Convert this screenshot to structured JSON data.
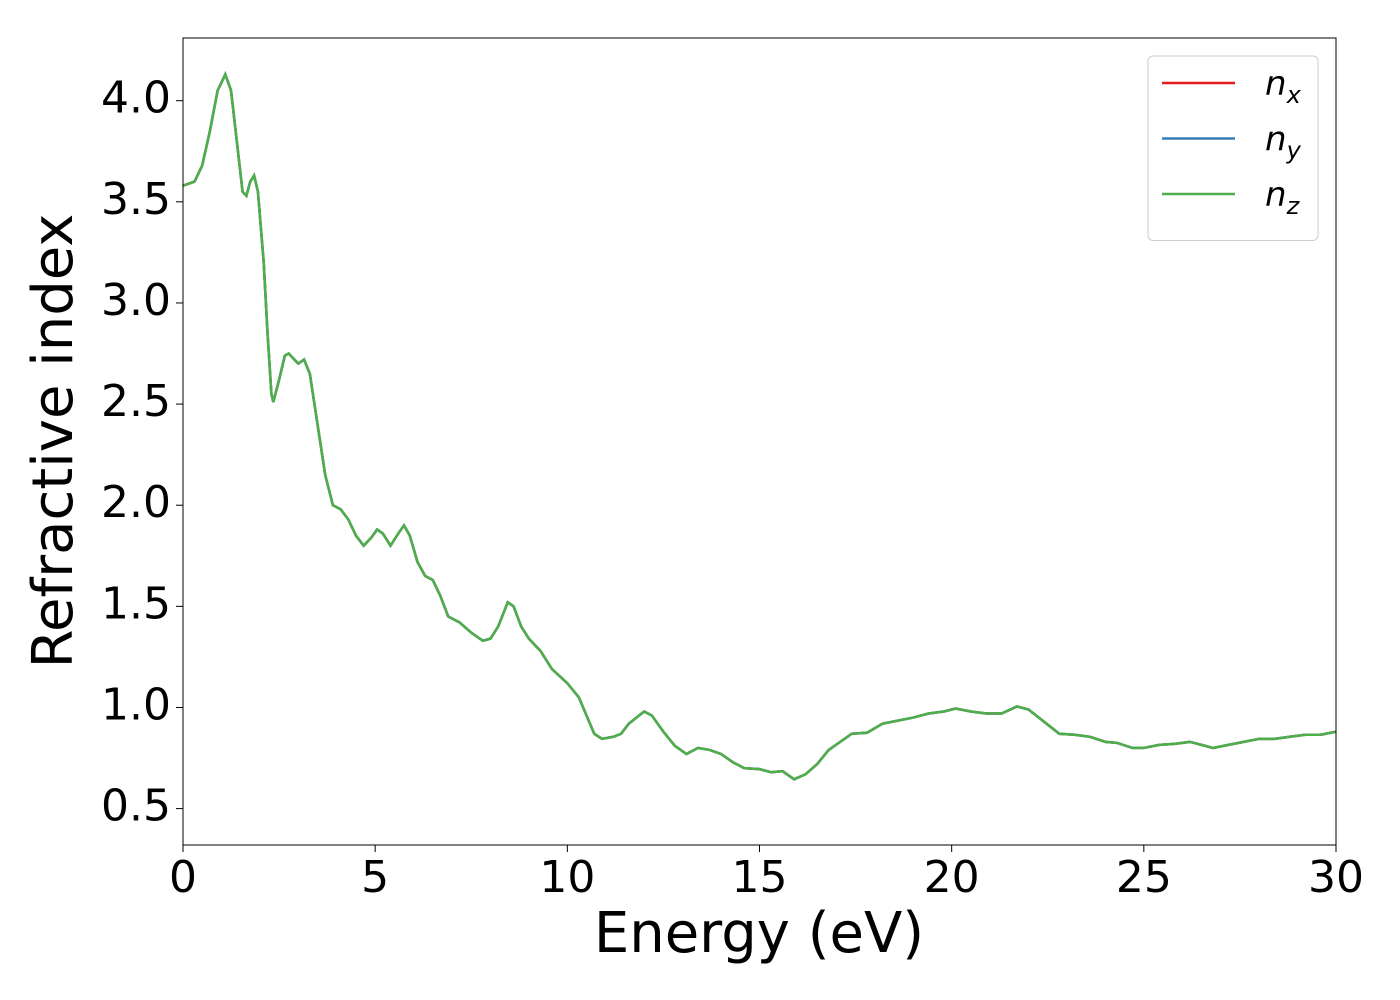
{
  "chart_data": {
    "type": "line",
    "xlabel": "Energy (eV)",
    "ylabel": "Refractive index",
    "x": [
      0,
      0.3,
      0.5,
      0.7,
      0.9,
      1.1,
      1.25,
      1.4,
      1.55,
      1.65,
      1.75,
      1.85,
      1.95,
      2.1,
      2.2,
      2.3,
      2.35,
      2.5,
      2.65,
      2.75,
      2.9,
      3.0,
      3.15,
      3.3,
      3.5,
      3.7,
      3.9,
      4.1,
      4.3,
      4.5,
      4.7,
      4.9,
      5.05,
      5.2,
      5.4,
      5.6,
      5.75,
      5.9,
      6.1,
      6.3,
      6.5,
      6.7,
      6.9,
      7.2,
      7.5,
      7.8,
      8.0,
      8.2,
      8.45,
      8.6,
      8.8,
      9.0,
      9.3,
      9.6,
      10.0,
      10.3,
      10.5,
      10.7,
      10.9,
      11.2,
      11.4,
      11.6,
      11.8,
      12.0,
      12.2,
      12.5,
      12.8,
      13.1,
      13.4,
      13.7,
      14.0,
      14.3,
      14.6,
      15.0,
      15.3,
      15.6,
      15.9,
      16.2,
      16.5,
      16.8,
      17.1,
      17.4,
      17.8,
      18.2,
      18.6,
      19.0,
      19.4,
      19.8,
      20.1,
      20.5,
      20.9,
      21.3,
      21.7,
      22.0,
      22.4,
      22.8,
      23.2,
      23.6,
      24.0,
      24.3,
      24.7,
      25.0,
      25.4,
      25.8,
      26.2,
      26.5,
      26.8,
      27.2,
      27.6,
      28.0,
      28.4,
      28.8,
      29.2,
      29.6,
      30.0
    ],
    "series": [
      {
        "name": "n_x",
        "color": "#e41a1c",
        "values": [
          3.58,
          3.6,
          3.68,
          3.85,
          4.05,
          4.13,
          4.05,
          3.8,
          3.55,
          3.53,
          3.6,
          3.63,
          3.55,
          3.2,
          2.85,
          2.55,
          2.51,
          2.62,
          2.74,
          2.75,
          2.72,
          2.7,
          2.72,
          2.65,
          2.4,
          2.15,
          2.0,
          1.98,
          1.93,
          1.85,
          1.8,
          1.84,
          1.88,
          1.86,
          1.8,
          1.86,
          1.9,
          1.85,
          1.72,
          1.65,
          1.63,
          1.55,
          1.45,
          1.42,
          1.37,
          1.33,
          1.34,
          1.4,
          1.52,
          1.5,
          1.4,
          1.34,
          1.28,
          1.19,
          1.12,
          1.05,
          0.96,
          0.87,
          0.845,
          0.855,
          0.87,
          0.92,
          0.95,
          0.98,
          0.96,
          0.88,
          0.81,
          0.77,
          0.8,
          0.79,
          0.77,
          0.73,
          0.7,
          0.695,
          0.68,
          0.685,
          0.645,
          0.67,
          0.72,
          0.79,
          0.83,
          0.87,
          0.875,
          0.92,
          0.935,
          0.95,
          0.97,
          0.98,
          0.995,
          0.98,
          0.97,
          0.97,
          1.005,
          0.99,
          0.93,
          0.87,
          0.865,
          0.855,
          0.83,
          0.825,
          0.8,
          0.8,
          0.815,
          0.82,
          0.83,
          0.815,
          0.8,
          0.815,
          0.83,
          0.845,
          0.845,
          0.855,
          0.865,
          0.865,
          0.88
        ]
      },
      {
        "name": "n_y",
        "color": "#377eb8",
        "values": [
          3.58,
          3.6,
          3.68,
          3.85,
          4.05,
          4.13,
          4.05,
          3.8,
          3.55,
          3.53,
          3.6,
          3.63,
          3.55,
          3.2,
          2.85,
          2.55,
          2.51,
          2.62,
          2.74,
          2.75,
          2.72,
          2.7,
          2.72,
          2.65,
          2.4,
          2.15,
          2.0,
          1.98,
          1.93,
          1.85,
          1.8,
          1.84,
          1.88,
          1.86,
          1.8,
          1.86,
          1.9,
          1.85,
          1.72,
          1.65,
          1.63,
          1.55,
          1.45,
          1.42,
          1.37,
          1.33,
          1.34,
          1.4,
          1.52,
          1.5,
          1.4,
          1.34,
          1.28,
          1.19,
          1.12,
          1.05,
          0.96,
          0.87,
          0.845,
          0.855,
          0.87,
          0.92,
          0.95,
          0.98,
          0.96,
          0.88,
          0.81,
          0.77,
          0.8,
          0.79,
          0.77,
          0.73,
          0.7,
          0.695,
          0.68,
          0.685,
          0.645,
          0.67,
          0.72,
          0.79,
          0.83,
          0.87,
          0.875,
          0.92,
          0.935,
          0.95,
          0.97,
          0.98,
          0.995,
          0.98,
          0.97,
          0.97,
          1.005,
          0.99,
          0.93,
          0.87,
          0.865,
          0.855,
          0.83,
          0.825,
          0.8,
          0.8,
          0.815,
          0.82,
          0.83,
          0.815,
          0.8,
          0.815,
          0.83,
          0.845,
          0.845,
          0.855,
          0.865,
          0.865,
          0.88
        ]
      },
      {
        "name": "n_z",
        "color": "#4daf4a",
        "values": [
          3.58,
          3.6,
          3.68,
          3.85,
          4.05,
          4.13,
          4.05,
          3.8,
          3.55,
          3.53,
          3.6,
          3.63,
          3.55,
          3.2,
          2.85,
          2.55,
          2.51,
          2.62,
          2.74,
          2.75,
          2.72,
          2.7,
          2.72,
          2.65,
          2.4,
          2.15,
          2.0,
          1.98,
          1.93,
          1.85,
          1.8,
          1.84,
          1.88,
          1.86,
          1.8,
          1.86,
          1.9,
          1.85,
          1.72,
          1.65,
          1.63,
          1.55,
          1.45,
          1.42,
          1.37,
          1.33,
          1.34,
          1.4,
          1.52,
          1.5,
          1.4,
          1.34,
          1.28,
          1.19,
          1.12,
          1.05,
          0.96,
          0.87,
          0.845,
          0.855,
          0.87,
          0.92,
          0.95,
          0.98,
          0.96,
          0.88,
          0.81,
          0.77,
          0.8,
          0.79,
          0.77,
          0.73,
          0.7,
          0.695,
          0.68,
          0.685,
          0.645,
          0.67,
          0.72,
          0.79,
          0.83,
          0.87,
          0.875,
          0.92,
          0.935,
          0.95,
          0.97,
          0.98,
          0.995,
          0.98,
          0.97,
          0.97,
          1.005,
          0.99,
          0.93,
          0.87,
          0.865,
          0.855,
          0.83,
          0.825,
          0.8,
          0.8,
          0.815,
          0.82,
          0.83,
          0.815,
          0.8,
          0.815,
          0.83,
          0.845,
          0.845,
          0.855,
          0.865,
          0.865,
          0.88
        ]
      }
    ],
    "xlim": [
      0,
      30
    ],
    "xticks": [
      0,
      5,
      10,
      15,
      20,
      25,
      30
    ],
    "ylim": [
      0.32,
      4.31
    ],
    "yticks": [
      0.5,
      {
        "value": 1,
        "label": "1.0"
      },
      1.5,
      {
        "value": 2,
        "label": "2.0"
      },
      2.5,
      {
        "value": 3,
        "label": "3.0"
      },
      3.5,
      {
        "value": 4,
        "label": "4.0"
      }
    ],
    "grid": false,
    "legend": "upper right"
  }
}
